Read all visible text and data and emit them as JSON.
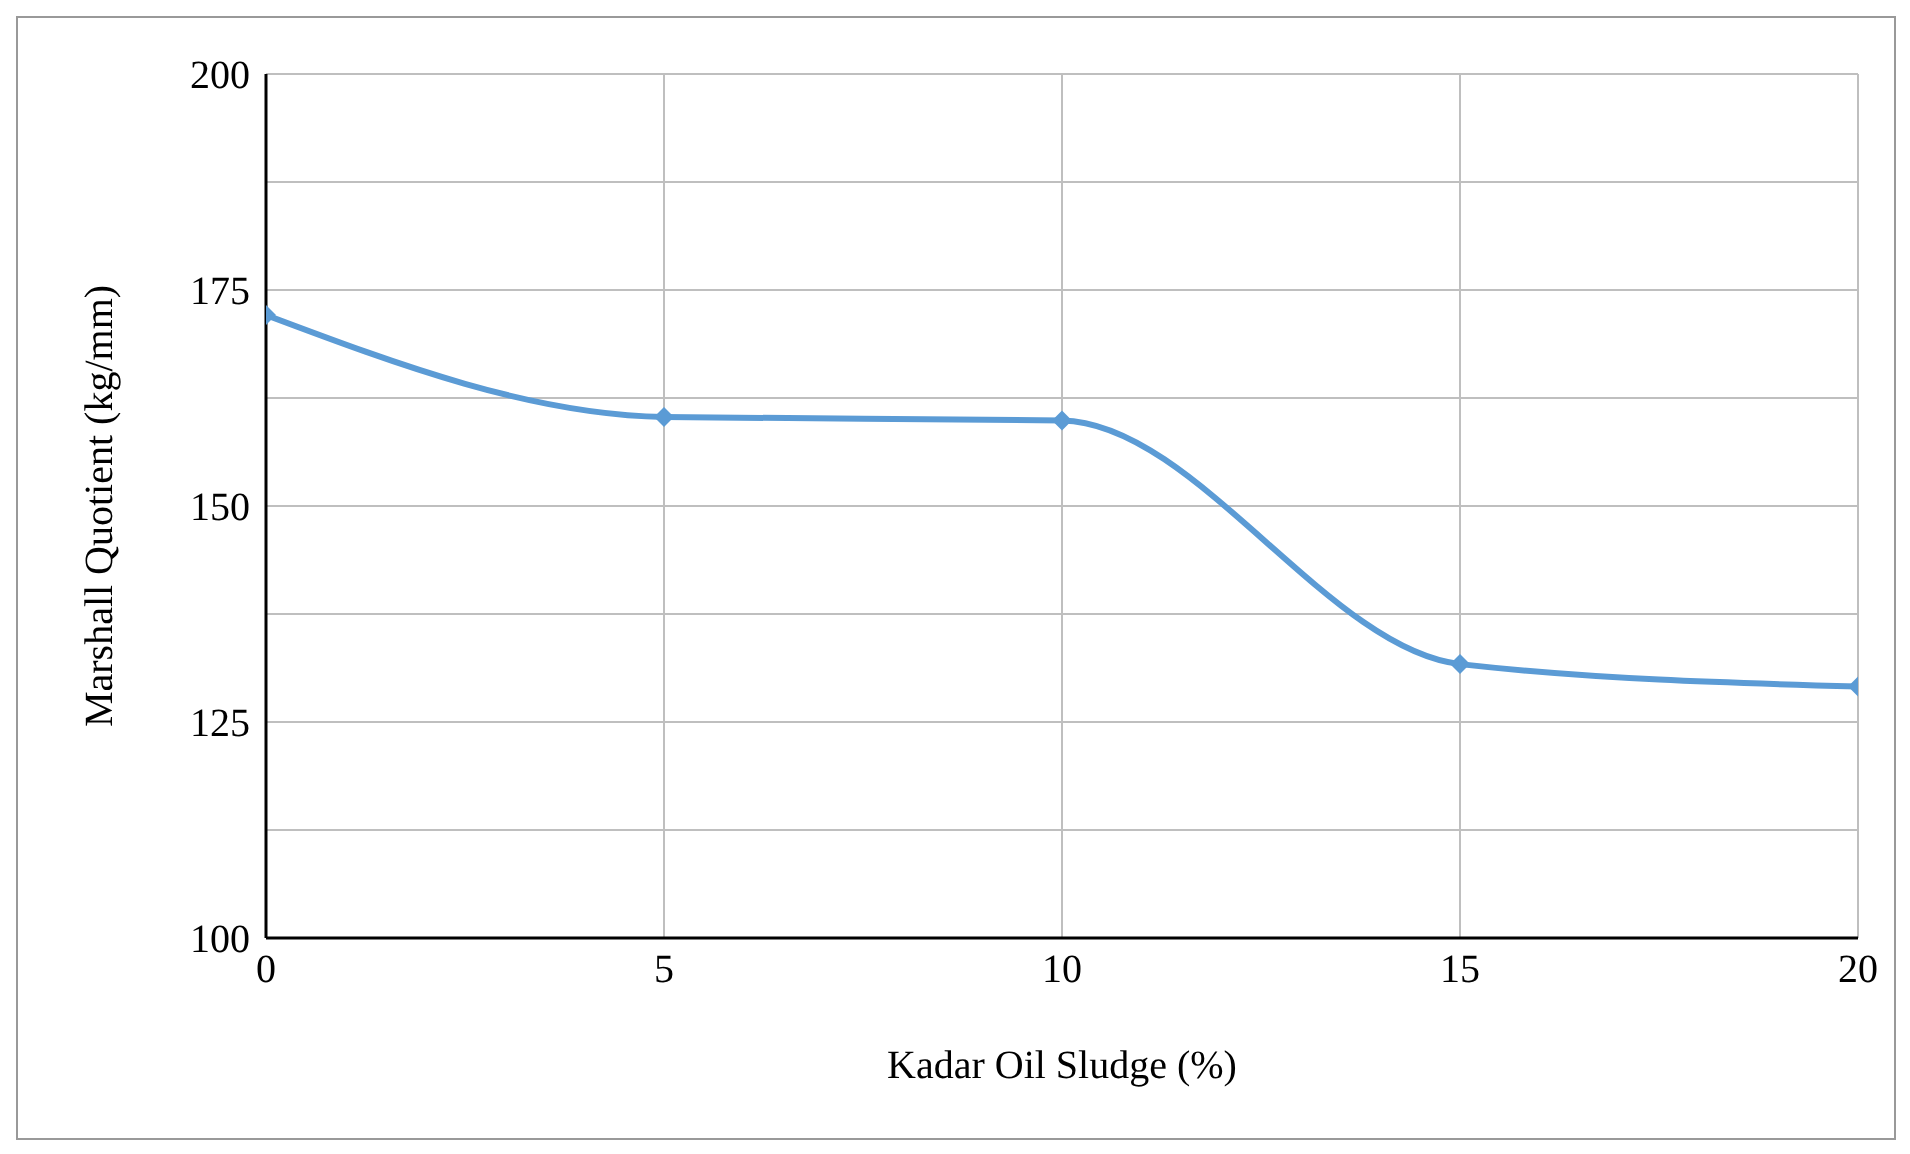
{
  "chart_data": {
    "type": "line",
    "xlabel": "Kadar Oil Sludge (%)",
    "ylabel": "Marshall Quotient (kg/mm)",
    "x": [
      0,
      5,
      10,
      15,
      20
    ],
    "series": [
      {
        "color": "#5b9bd5",
        "values": [
          172.1,
          160.3,
          159.9,
          131.7,
          129.1
        ]
      }
    ],
    "xlim": [
      0,
      20
    ],
    "xticks": [
      0,
      5,
      10,
      15,
      20
    ],
    "ylim": [
      100,
      200
    ],
    "yticks": [
      100,
      {
        "value": 112.5,
        "label": null
      },
      125,
      {
        "value": 137.5,
        "label": null
      },
      150,
      {
        "value": 162.5,
        "label": null
      },
      175,
      {
        "value": 187.5,
        "label": null
      },
      200
    ],
    "grid": true,
    "marker": "diamond",
    "line_style": "solid"
  }
}
